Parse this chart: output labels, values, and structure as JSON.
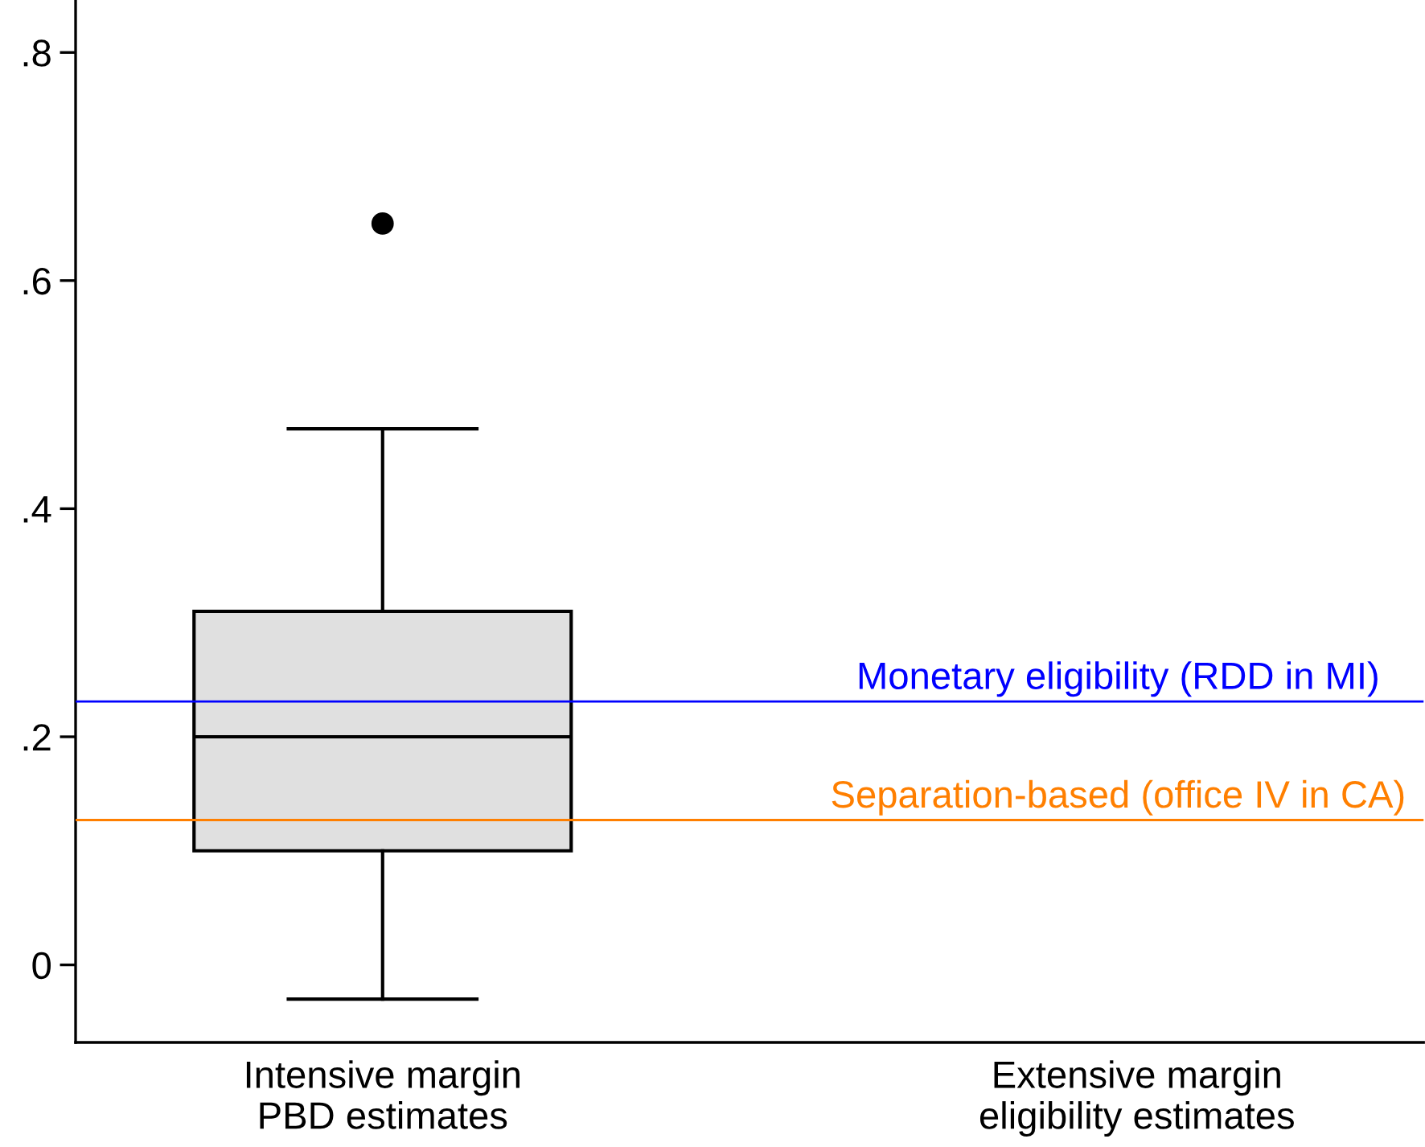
{
  "chart_data": {
    "type": "box",
    "categories": [
      "Intensive margin\nPBD estimates",
      "Extensive margin\neligibility estimates"
    ],
    "boxes": [
      {
        "low": -0.03,
        "q1": 0.1,
        "median": 0.2,
        "q3": 0.31,
        "high": 0.47,
        "outliers": [
          0.65
        ]
      },
      null
    ],
    "color": "#e0e0e0",
    "ylim": [
      -0.068,
      0.845
    ],
    "yticks": [
      {
        "value": 0,
        "label": "0"
      },
      {
        "value": 0.2,
        "label": ".2"
      },
      {
        "value": 0.4,
        "label": ".4"
      },
      {
        "value": 0.6,
        "label": ".6"
      },
      {
        "value": 0.8,
        "label": ".8"
      }
    ],
    "ref_lines": [
      {
        "axis": "y",
        "value": 0.231,
        "label": "Monetary eligibility (RDD in MI)",
        "color": "#0000ff"
      },
      {
        "axis": "y",
        "value": 0.127,
        "label": "Separation-based (office IV in CA)",
        "color": "#ff7f00"
      }
    ],
    "grid": false,
    "legend": false
  }
}
